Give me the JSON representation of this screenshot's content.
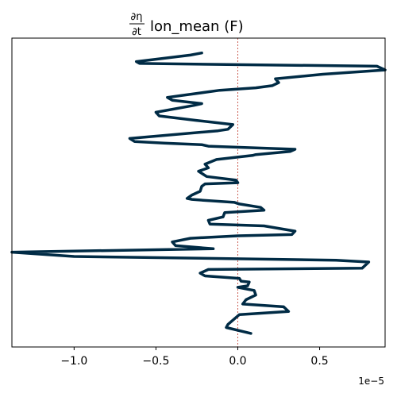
{
  "chart_data": {
    "type": "line",
    "title": "∂η/∂t lon_mean (F)",
    "title_parts": {
      "numerator": "∂η",
      "denominator": "∂t",
      "text": "lon_mean (F)"
    },
    "xlabel": "",
    "ylabel": "",
    "x_offset_label": "1e−5",
    "xlim": [
      -1.38,
      0.9
    ],
    "ylim": [
      0,
      1
    ],
    "x_ticks": [
      -1.0,
      -0.5,
      0.0,
      0.5
    ],
    "x_tick_labels": [
      "−1.0",
      "−0.5",
      "0.0",
      "0.5"
    ],
    "y_ticks_visible": false,
    "grid": false,
    "reference_line": {
      "x": 0.0,
      "color": "#c0392b",
      "style": "dashed"
    },
    "line_color": "#002b45",
    "series": [
      {
        "x": [
          -0.22,
          -0.29,
          -0.62,
          -0.6,
          0.85,
          0.9,
          0.52,
          0.23,
          0.25,
          0.21,
          0.11,
          -0.11,
          -0.43,
          -0.4,
          -0.22,
          -0.27,
          -0.5,
          -0.48,
          -0.26,
          -0.03,
          -0.06,
          -0.12,
          -0.66,
          -0.63,
          -0.45,
          -0.22,
          -0.18,
          0.35,
          0.32,
          0.11,
          0.09,
          -0.13,
          -0.2,
          -0.18,
          -0.24,
          -0.19,
          -0.01,
          0.0,
          -0.2,
          -0.22,
          -0.23,
          -0.28,
          -0.31,
          -0.28,
          -0.24,
          -0.02,
          0.01,
          0.14,
          0.16,
          -0.08,
          -0.09,
          -0.18,
          -0.17,
          -0.02,
          0.16,
          0.35,
          0.33,
          0.0,
          -0.29,
          -0.4,
          -0.38,
          -0.15,
          -1.38,
          -1.0,
          0.6,
          0.8,
          0.76,
          -0.18,
          -0.23,
          -0.2,
          0.01,
          0.02,
          0.07,
          0.06,
          0.0,
          0.1,
          0.11,
          0.05,
          0.03,
          0.28,
          0.31,
          0.01,
          -0.06,
          -0.07,
          0.08
        ],
        "y": [
          0.952,
          0.945,
          0.924,
          0.918,
          0.909,
          0.897,
          0.883,
          0.868,
          0.856,
          0.846,
          0.839,
          0.831,
          0.808,
          0.799,
          0.788,
          0.782,
          0.76,
          0.748,
          0.734,
          0.72,
          0.705,
          0.7,
          0.675,
          0.665,
          0.66,
          0.655,
          0.65,
          0.64,
          0.633,
          0.623,
          0.62,
          0.607,
          0.592,
          0.58,
          0.569,
          0.552,
          0.54,
          0.532,
          0.528,
          0.52,
          0.504,
          0.492,
          0.481,
          0.478,
          0.476,
          0.468,
          0.463,
          0.452,
          0.443,
          0.435,
          0.421,
          0.41,
          0.398,
          0.395,
          0.392,
          0.375,
          0.364,
          0.36,
          0.352,
          0.34,
          0.328,
          0.318,
          0.307,
          0.293,
          0.281,
          0.275,
          0.255,
          0.251,
          0.239,
          0.23,
          0.222,
          0.213,
          0.21,
          0.198,
          0.193,
          0.183,
          0.168,
          0.153,
          0.139,
          0.13,
          0.115,
          0.105,
          0.073,
          0.063,
          0.044
        ]
      }
    ]
  }
}
